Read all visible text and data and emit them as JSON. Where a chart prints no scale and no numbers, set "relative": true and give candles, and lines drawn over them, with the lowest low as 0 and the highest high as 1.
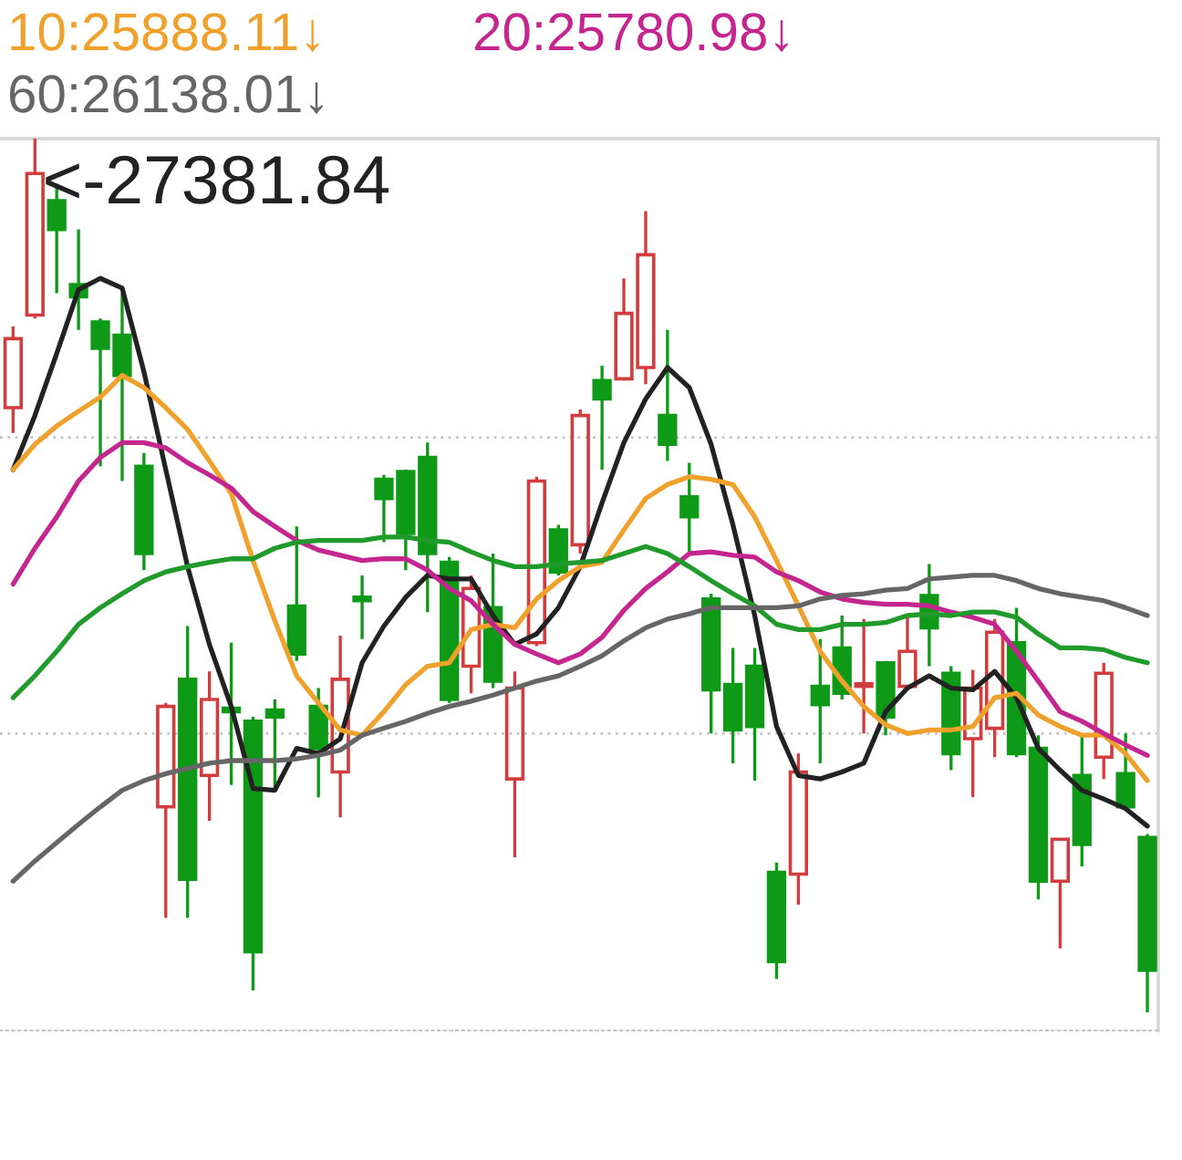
{
  "chart_data": {
    "type": "candlestick",
    "relative": true,
    "legend": "top",
    "categories": [
      null,
      null,
      null,
      null,
      null,
      null,
      null,
      null,
      null,
      null,
      null,
      null,
      null,
      null,
      null,
      null,
      null,
      null,
      null,
      null,
      null,
      null,
      null,
      null,
      null,
      null,
      null,
      null,
      null,
      null,
      null,
      null,
      null,
      null,
      null,
      null,
      null,
      null,
      null,
      null,
      null,
      null,
      null,
      null,
      null,
      null,
      null,
      null,
      null,
      null,
      null,
      null,
      null
    ],
    "ohlc": [
      [
        0.692,
        0.785,
        0.663,
        0.771
      ],
      [
        0.798,
        1,
        0.794,
        0.96
      ],
      [
        0.929,
        0.948,
        0.823,
        0.896
      ],
      [
        0.833,
        0.896,
        0.781,
        0.819
      ],
      [
        0.79,
        0.794,
        0.625,
        0.76
      ],
      [
        0.775,
        0.823,
        0.608,
        0.729
      ],
      [
        0.625,
        0.64,
        0.506,
        0.525
      ],
      [
        0.235,
        0.354,
        0.108,
        0.35
      ],
      [
        0.381,
        0.442,
        0.108,
        0.152
      ],
      [
        0.271,
        0.39,
        0.219,
        0.358
      ],
      [
        0.348,
        0.423,
        0.26,
        0.344
      ],
      [
        0.333,
        0.338,
        0.025,
        0.069
      ],
      [
        0.346,
        0.358,
        0.254,
        0.338
      ],
      [
        0.465,
        0.556,
        0.402,
        0.41
      ],
      [
        0.35,
        0.371,
        0.246,
        0.302
      ],
      [
        0.275,
        0.431,
        0.223,
        0.381
      ],
      [
        0.475,
        0.5,
        0.427,
        0.471
      ],
      [
        0.61,
        0.615,
        0.538,
        0.588
      ],
      [
        0.619,
        0.621,
        0.506,
        0.548
      ],
      [
        0.635,
        0.652,
        0.458,
        0.525
      ],
      [
        0.515,
        0.521,
        0.354,
        0.358
      ],
      [
        0.396,
        0.5,
        0.365,
        0.485
      ],
      [
        0.463,
        0.525,
        0.371,
        0.379
      ],
      [
        0.267,
        0.39,
        0.177,
        0.371
      ],
      [
        0.423,
        0.613,
        0.419,
        0.608
      ],
      [
        0.552,
        0.558,
        0.5,
        0.504
      ],
      [
        0.535,
        0.69,
        0.525,
        0.683
      ],
      [
        0.723,
        0.74,
        0.621,
        0.702
      ],
      [
        0.725,
        0.84,
        0.723,
        0.8
      ],
      [
        0.738,
        0.917,
        0.719,
        0.867
      ],
      [
        0.683,
        0.781,
        0.631,
        0.65
      ],
      [
        0.59,
        0.629,
        0.525,
        0.567
      ],
      [
        0.473,
        0.479,
        0.319,
        0.369
      ],
      [
        0.375,
        0.417,
        0.285,
        0.323
      ],
      [
        0.396,
        0.417,
        0.265,
        0.327
      ],
      [
        0.16,
        0.171,
        0.038,
        0.058
      ],
      [
        0.158,
        0.296,
        0.123,
        0.275
      ],
      [
        0.373,
        0.427,
        0.285,
        0.352
      ],
      [
        0.417,
        0.454,
        0.358,
        0.365
      ],
      [
        0.373,
        0.45,
        0.319,
        0.375
      ],
      [
        0.4,
        0.402,
        0.317,
        0.338
      ],
      [
        0.373,
        0.454,
        0.369,
        0.413
      ],
      [
        0.477,
        0.513,
        0.396,
        0.44
      ],
      [
        0.388,
        0.396,
        0.277,
        0.296
      ],
      [
        0.313,
        0.392,
        0.246,
        0.371
      ],
      [
        0.325,
        0.45,
        0.292,
        0.435
      ],
      [
        0.423,
        0.463,
        0.292,
        0.296
      ],
      [
        0.302,
        0.317,
        0.129,
        0.15
      ],
      [
        0.15,
        0.198,
        0.073,
        0.198
      ],
      [
        0.271,
        0.317,
        0.167,
        0.192
      ],
      [
        0.292,
        0.4,
        0.267,
        0.388
      ],
      [
        0.273,
        0.319,
        0.235,
        0.235
      ],
      [
        0.2,
        0.204,
        0,
        0.048
      ]
    ],
    "colors": [
      "#d23c3c",
      "#d23c3c",
      "#0e9a16",
      "#0e9a16",
      "#0e9a16",
      "#0e9a16",
      "#0e9a16",
      "#d23c3c",
      "#0e9a16",
      "#d23c3c",
      "#0e9a16",
      "#0e9a16",
      "#0e9a16",
      "#0e9a16",
      "#0e9a16",
      "#d23c3c",
      "#0e9a16",
      "#0e9a16",
      "#0e9a16",
      "#0e9a16",
      "#0e9a16",
      "#d23c3c",
      "#0e9a16",
      "#d23c3c",
      "#d23c3c",
      "#0e9a16",
      "#d23c3c",
      "#0e9a16",
      "#d23c3c",
      "#d23c3c",
      "#0e9a16",
      "#0e9a16",
      "#0e9a16",
      "#0e9a16",
      "#0e9a16",
      "#0e9a16",
      "#d23c3c",
      "#0e9a16",
      "#0e9a16",
      "#d23c3c",
      "#0e9a16",
      "#d23c3c",
      "#0e9a16",
      "#0e9a16",
      "#d23c3c",
      "#d23c3c",
      "#0e9a16",
      "#0e9a16",
      "#d23c3c",
      "#0e9a16",
      "#d23c3c",
      "#0e9a16",
      "#0e9a16"
    ],
    "series": [
      {
        "type": "line",
        "color": "#222222",
        "values": [
          0.621,
          0.683,
          0.754,
          0.827,
          0.84,
          0.829,
          0.733,
          0.621,
          0.51,
          0.421,
          0.35,
          0.256,
          0.254,
          0.302,
          0.296,
          0.313,
          0.4,
          0.442,
          0.475,
          0.5,
          0.496,
          0.496,
          0.454,
          0.421,
          0.433,
          0.463,
          0.51,
          0.583,
          0.652,
          0.702,
          0.738,
          0.715,
          0.65,
          0.558,
          0.454,
          0.327,
          0.271,
          0.267,
          0.275,
          0.285,
          0.344,
          0.371,
          0.385,
          0.371,
          0.369,
          0.39,
          0.36,
          0.302,
          0.277,
          0.254,
          0.244,
          0.233,
          0.213
        ]
      },
      {
        "type": "line",
        "name": "10:25888.11↓",
        "color": "#f0a12c",
        "values": [
          0.621,
          0.65,
          0.671,
          0.688,
          0.704,
          0.729,
          0.715,
          0.692,
          0.667,
          0.631,
          0.594,
          0.517,
          0.448,
          0.385,
          0.354,
          0.323,
          0.317,
          0.344,
          0.375,
          0.396,
          0.4,
          0.438,
          0.444,
          0.44,
          0.473,
          0.494,
          0.51,
          0.515,
          0.552,
          0.588,
          0.604,
          0.613,
          0.61,
          0.604,
          0.567,
          0.517,
          0.465,
          0.413,
          0.379,
          0.35,
          0.329,
          0.319,
          0.323,
          0.323,
          0.327,
          0.36,
          0.365,
          0.34,
          0.327,
          0.317,
          0.317,
          0.296,
          0.265
        ]
      },
      {
        "type": "line",
        "name": "20:25780.98↓",
        "color": "#c5258f",
        "values": [
          0.49,
          0.531,
          0.567,
          0.608,
          0.635,
          0.652,
          0.652,
          0.646,
          0.629,
          0.615,
          0.6,
          0.573,
          0.556,
          0.54,
          0.529,
          0.523,
          0.517,
          0.519,
          0.519,
          0.506,
          0.485,
          0.471,
          0.444,
          0.421,
          0.41,
          0.4,
          0.41,
          0.429,
          0.46,
          0.485,
          0.504,
          0.525,
          0.527,
          0.523,
          0.521,
          0.504,
          0.494,
          0.481,
          0.473,
          0.469,
          0.467,
          0.467,
          0.465,
          0.458,
          0.452,
          0.444,
          0.413,
          0.379,
          0.344,
          0.333,
          0.319,
          0.306,
          0.294
        ]
      },
      {
        "type": "line",
        "color": "#1f9a2b",
        "values": [
          0.36,
          0.385,
          0.413,
          0.444,
          0.463,
          0.479,
          0.494,
          0.504,
          0.51,
          0.515,
          0.519,
          0.519,
          0.531,
          0.538,
          0.54,
          0.54,
          0.54,
          0.544,
          0.544,
          0.54,
          0.538,
          0.527,
          0.517,
          0.51,
          0.51,
          0.513,
          0.515,
          0.517,
          0.525,
          0.533,
          0.525,
          0.51,
          0.494,
          0.479,
          0.465,
          0.444,
          0.438,
          0.438,
          0.444,
          0.444,
          0.446,
          0.454,
          0.456,
          0.454,
          0.458,
          0.458,
          0.452,
          0.433,
          0.417,
          0.417,
          0.415,
          0.406,
          0.4
        ]
      },
      {
        "type": "line",
        "name": "60:26138.01↓",
        "color": "#666666",
        "values": [
          0.15,
          0.173,
          0.194,
          0.215,
          0.235,
          0.254,
          0.265,
          0.273,
          0.279,
          0.285,
          0.288,
          0.288,
          0.288,
          0.29,
          0.294,
          0.3,
          0.317,
          0.325,
          0.333,
          0.342,
          0.35,
          0.356,
          0.363,
          0.371,
          0.379,
          0.385,
          0.396,
          0.408,
          0.425,
          0.44,
          0.45,
          0.456,
          0.463,
          0.463,
          0.463,
          0.463,
          0.465,
          0.473,
          0.477,
          0.479,
          0.483,
          0.485,
          0.496,
          0.498,
          0.5,
          0.5,
          0.494,
          0.485,
          0.479,
          0.475,
          0.471,
          0.463,
          0.454
        ]
      }
    ],
    "ref_lines": [
      {
        "axis": "y",
        "value": 0.658,
        "color": "#c4c4c4",
        "line_style": "dotted"
      },
      {
        "axis": "y",
        "value": 0.319,
        "color": "#c4c4c4",
        "line_style": "dotted"
      }
    ],
    "annotations": [
      "<-27381.84"
    ]
  }
}
